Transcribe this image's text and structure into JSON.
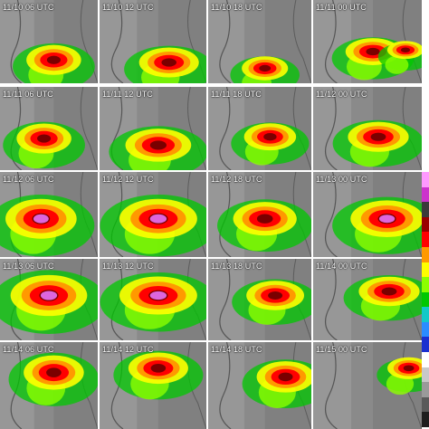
{
  "panels": [
    {
      "time": "11/10 06 UTC"
    },
    {
      "time": "11/10 12 UTC"
    },
    {
      "time": "11/10 18 UTC"
    },
    {
      "time": "11/11 00 UTC"
    },
    {
      "time": "11/11 06 UTC"
    },
    {
      "time": "11/11 12 UTC"
    },
    {
      "time": "11/11 18 UTC"
    },
    {
      "time": "11/12 00 UTC"
    },
    {
      "time": "11/12 06 UTC"
    },
    {
      "time": "11/12 12 UTC"
    },
    {
      "time": "11/12 18 UTC"
    },
    {
      "time": "11/13 00 UTC"
    },
    {
      "time": "11/13 06 UTC"
    },
    {
      "time": "11/13 12 UTC"
    },
    {
      "time": "11/13 18 UTC"
    },
    {
      "time": "11/14 00 UTC"
    },
    {
      "time": "11/14 06 UTC"
    },
    {
      "time": "11/14 12 UTC"
    },
    {
      "time": "11/14 18 UTC"
    },
    {
      "time": "11/15 00 UTC"
    }
  ],
  "colorbar": {
    "colors": [
      "#1e1e1e",
      "#5a5a5a",
      "#9a9a9a",
      "#c8c8c8",
      "#ffffff",
      "#1a2fd0",
      "#2a8cff",
      "#11c8c8",
      "#00c800",
      "#8cff00",
      "#ffff00",
      "#ff9900",
      "#ff0000",
      "#990000",
      "#3a3a3a",
      "#cc33cc",
      "#ff99ff"
    ]
  }
}
